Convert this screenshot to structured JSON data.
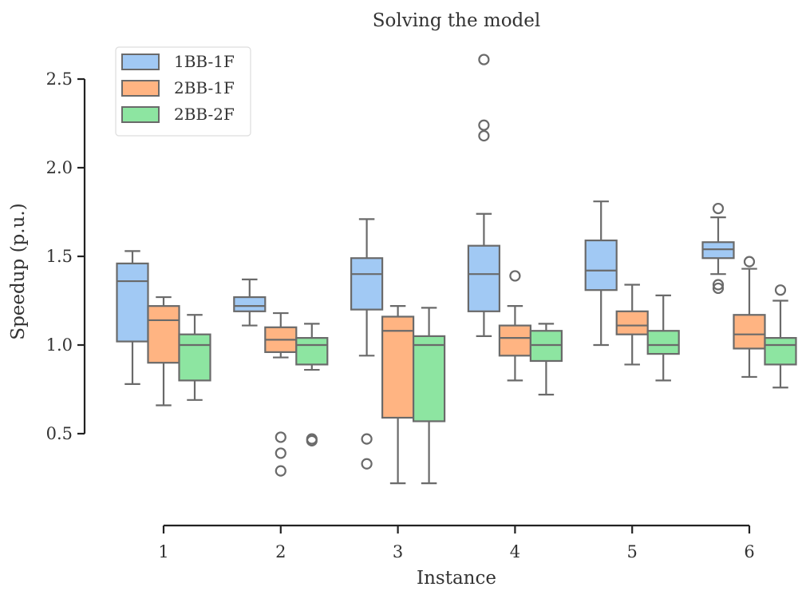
{
  "chart_data": {
    "type": "box",
    "title": "Solving the model",
    "xlabel": "Instance",
    "ylabel": "Speedup (p.u.)",
    "categories": [
      "1",
      "2",
      "3",
      "4",
      "5",
      "6"
    ],
    "yticks": [
      "0.5",
      "1.0",
      "1.5",
      "2.0",
      "2.5"
    ],
    "ytick_values": [
      0.5,
      1.0,
      1.5,
      2.0,
      2.5
    ],
    "ylim": [
      0.0,
      2.8
    ],
    "legend_position": "top-left",
    "series": [
      {
        "name": "1BB-1F",
        "color": "#a1c9f4",
        "boxes": [
          {
            "whislo": 0.78,
            "q1": 1.02,
            "med": 1.36,
            "q3": 1.46,
            "whishi": 1.53,
            "fliers": []
          },
          {
            "whislo": 1.11,
            "q1": 1.19,
            "med": 1.22,
            "q3": 1.27,
            "whishi": 1.37,
            "fliers": []
          },
          {
            "whislo": 0.94,
            "q1": 1.2,
            "med": 1.4,
            "q3": 1.49,
            "whishi": 1.71,
            "fliers": [
              0.47,
              0.33
            ]
          },
          {
            "whislo": 1.05,
            "q1": 1.19,
            "med": 1.4,
            "q3": 1.56,
            "whishi": 1.74,
            "fliers": [
              2.61,
              2.24,
              2.18
            ]
          },
          {
            "whislo": 1.0,
            "q1": 1.31,
            "med": 1.42,
            "q3": 1.59,
            "whishi": 1.81,
            "fliers": []
          },
          {
            "whislo": 1.4,
            "q1": 1.49,
            "med": 1.54,
            "q3": 1.58,
            "whishi": 1.72,
            "fliers": [
              1.77,
              1.34,
              1.32
            ]
          }
        ]
      },
      {
        "name": "2BB-1F",
        "color": "#ffb482",
        "boxes": [
          {
            "whislo": 0.66,
            "q1": 0.9,
            "med": 1.14,
            "q3": 1.22,
            "whishi": 1.27,
            "fliers": []
          },
          {
            "whislo": 0.93,
            "q1": 0.96,
            "med": 1.03,
            "q3": 1.1,
            "whishi": 1.18,
            "fliers": [
              0.48,
              0.39,
              0.29
            ]
          },
          {
            "whislo": 0.22,
            "q1": 0.59,
            "med": 1.08,
            "q3": 1.16,
            "whishi": 1.22,
            "fliers": []
          },
          {
            "whislo": 0.8,
            "q1": 0.94,
            "med": 1.04,
            "q3": 1.11,
            "whishi": 1.22,
            "fliers": [
              1.39
            ]
          },
          {
            "whislo": 0.89,
            "q1": 1.06,
            "med": 1.11,
            "q3": 1.19,
            "whishi": 1.34,
            "fliers": []
          },
          {
            "whislo": 0.82,
            "q1": 0.98,
            "med": 1.06,
            "q3": 1.17,
            "whishi": 1.43,
            "fliers": [
              1.47
            ]
          }
        ]
      },
      {
        "name": "2BB-2F",
        "color": "#8de5a1",
        "boxes": [
          {
            "whislo": 0.69,
            "q1": 0.8,
            "med": 1.0,
            "q3": 1.06,
            "whishi": 1.17,
            "fliers": []
          },
          {
            "whislo": 0.86,
            "q1": 0.89,
            "med": 1.0,
            "q3": 1.04,
            "whishi": 1.12,
            "fliers": [
              0.47,
              0.46
            ]
          },
          {
            "whislo": 0.22,
            "q1": 0.57,
            "med": 1.0,
            "q3": 1.05,
            "whishi": 1.21,
            "fliers": []
          },
          {
            "whislo": 0.72,
            "q1": 0.91,
            "med": 1.0,
            "q3": 1.08,
            "whishi": 1.12,
            "fliers": []
          },
          {
            "whislo": 0.8,
            "q1": 0.95,
            "med": 1.0,
            "q3": 1.08,
            "whishi": 1.28,
            "fliers": []
          },
          {
            "whislo": 0.76,
            "q1": 0.89,
            "med": 1.0,
            "q3": 1.04,
            "whishi": 1.25,
            "fliers": [
              1.31
            ]
          }
        ]
      }
    ]
  },
  "colors": {
    "line": "#6a6a6a",
    "axis": "#222222",
    "text": "#333333"
  }
}
